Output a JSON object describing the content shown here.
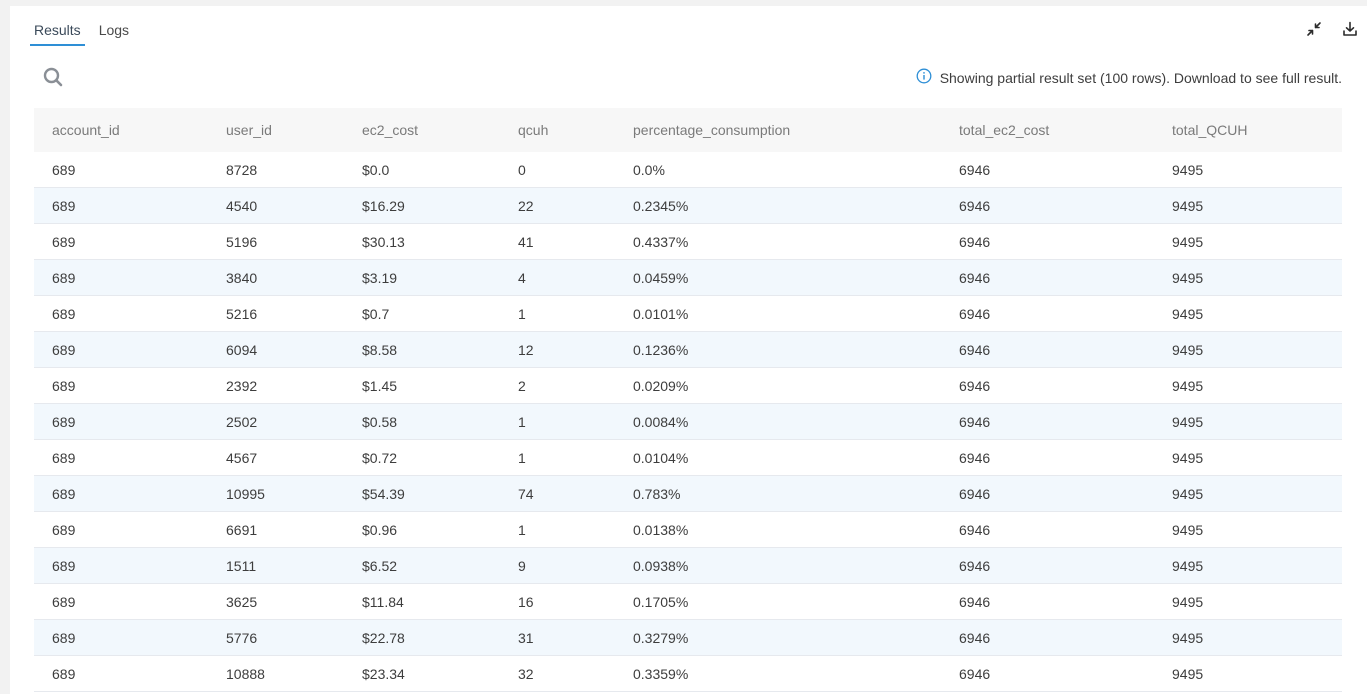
{
  "tabs": [
    {
      "label": "Results",
      "active": true
    },
    {
      "label": "Logs",
      "active": false
    }
  ],
  "toolbar": {
    "collapse_icon": "collapse-arrows-icon",
    "download_icon": "download-icon"
  },
  "search": {
    "icon": "search-icon"
  },
  "notice": {
    "icon": "info-icon",
    "text": "Showing partial result set (100 rows). Download to see full result."
  },
  "colors": {
    "accent": "#2e8fd6",
    "row_alt": "#f2f8fd",
    "header_bg": "#f7f7f7"
  },
  "table": {
    "columns": [
      "account_id",
      "user_id",
      "ec2_cost",
      "qcuh",
      "percentage_consumption",
      "total_ec2_cost",
      "total_QCUH"
    ],
    "rows": [
      [
        "689",
        "8728",
        "$0.0",
        "0",
        "0.0%",
        "6946",
        "9495"
      ],
      [
        "689",
        "4540",
        "$16.29",
        "22",
        "0.2345%",
        "6946",
        "9495"
      ],
      [
        "689",
        "5196",
        "$30.13",
        "41",
        "0.4337%",
        "6946",
        "9495"
      ],
      [
        "689",
        "3840",
        "$3.19",
        "4",
        "0.0459%",
        "6946",
        "9495"
      ],
      [
        "689",
        "5216",
        "$0.7",
        "1",
        "0.0101%",
        "6946",
        "9495"
      ],
      [
        "689",
        "6094",
        "$8.58",
        "12",
        "0.1236%",
        "6946",
        "9495"
      ],
      [
        "689",
        "2392",
        "$1.45",
        "2",
        "0.0209%",
        "6946",
        "9495"
      ],
      [
        "689",
        "2502",
        "$0.58",
        "1",
        "0.0084%",
        "6946",
        "9495"
      ],
      [
        "689",
        "4567",
        "$0.72",
        "1",
        "0.0104%",
        "6946",
        "9495"
      ],
      [
        "689",
        "10995",
        "$54.39",
        "74",
        "0.783%",
        "6946",
        "9495"
      ],
      [
        "689",
        "6691",
        "$0.96",
        "1",
        "0.0138%",
        "6946",
        "9495"
      ],
      [
        "689",
        "1511",
        "$6.52",
        "9",
        "0.0938%",
        "6946",
        "9495"
      ],
      [
        "689",
        "3625",
        "$11.84",
        "16",
        "0.1705%",
        "6946",
        "9495"
      ],
      [
        "689",
        "5776",
        "$22.78",
        "31",
        "0.3279%",
        "6946",
        "9495"
      ],
      [
        "689",
        "10888",
        "$23.34",
        "32",
        "0.3359%",
        "6946",
        "9495"
      ]
    ]
  }
}
